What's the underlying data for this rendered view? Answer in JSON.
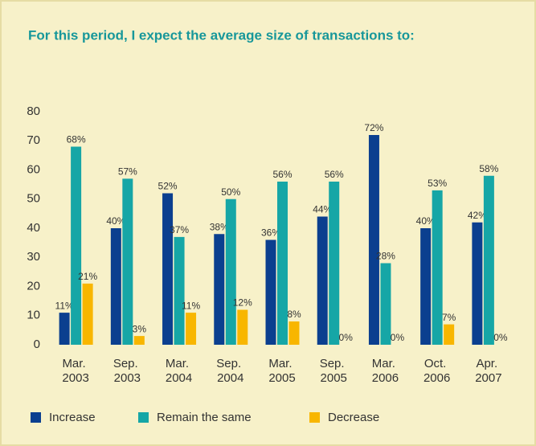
{
  "chart_data": {
    "type": "bar",
    "title": "For this period, I expect the average size of transactions to:",
    "categories": [
      "Mar. 2003",
      "Sep. 2003",
      "Mar. 2004",
      "Sep. 2004",
      "Mar. 2005",
      "Sep. 2005",
      "Mar. 2006",
      "Oct. 2006",
      "Apr. 2007"
    ],
    "series": [
      {
        "name": "Increase",
        "color": "#0b3f8f",
        "values": [
          11,
          40,
          52,
          38,
          36,
          44,
          72,
          40,
          42
        ],
        "value_labels": [
          "11%",
          "40%",
          "52%",
          "38%",
          "36%",
          "44%",
          "72%",
          "40%",
          "42%"
        ]
      },
      {
        "name": "Remain the same",
        "color": "#16a6a6",
        "values": [
          68,
          57,
          37,
          50,
          56,
          56,
          28,
          53,
          58
        ],
        "value_labels": [
          "68%",
          "57%",
          "37%",
          "50%",
          "56%",
          "56%",
          "28%",
          "53%",
          "58%"
        ]
      },
      {
        "name": "Decrease",
        "color": "#f8b600",
        "values": [
          21,
          3,
          11,
          12,
          8,
          0,
          0,
          7,
          0
        ],
        "value_labels": [
          "21%",
          "3%",
          "11%",
          "12%",
          "8%",
          "0%",
          "0%",
          "7%",
          "0%"
        ]
      }
    ],
    "ylim": [
      0,
      80
    ],
    "yticks": [
      0,
      10,
      20,
      30,
      40,
      50,
      60,
      70,
      80
    ],
    "grid": false
  }
}
